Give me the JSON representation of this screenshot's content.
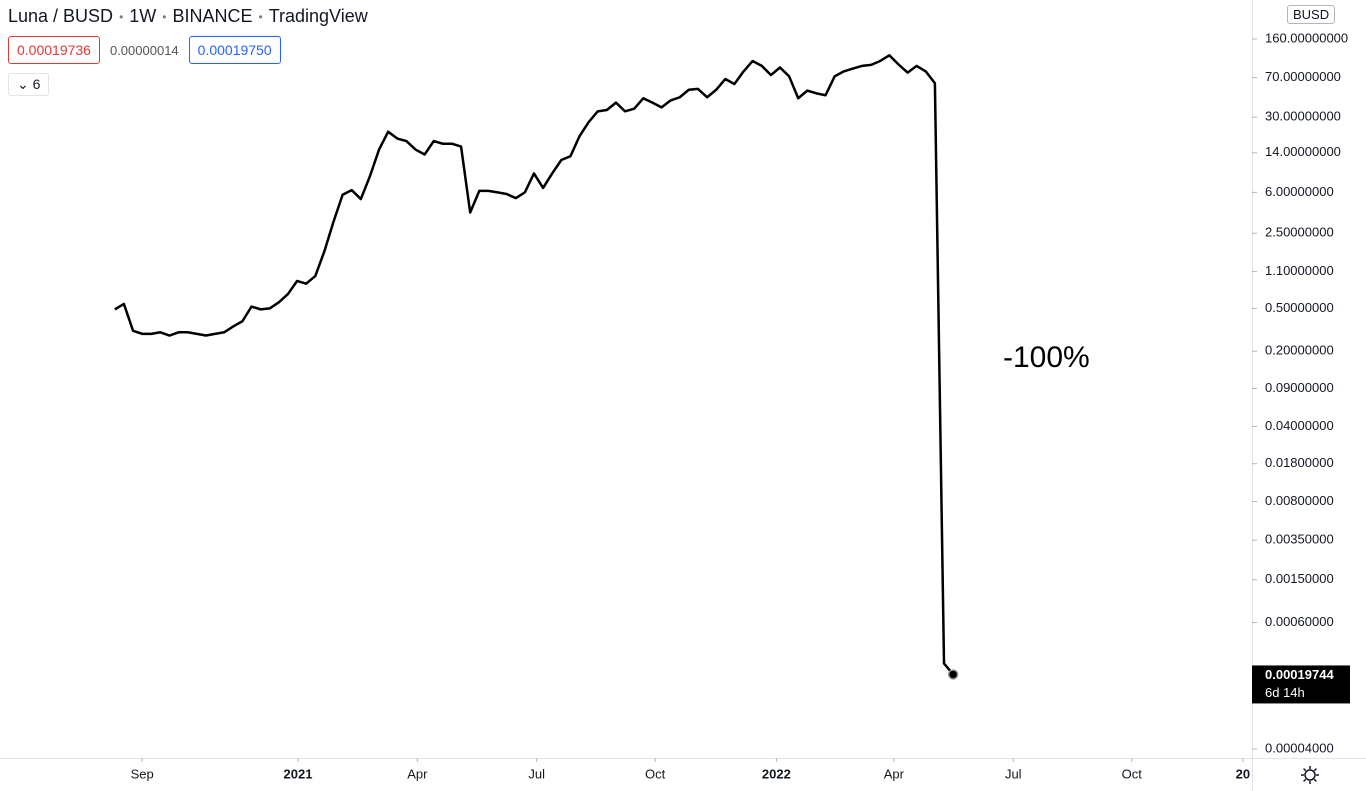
{
  "chart_data": {
    "type": "line",
    "title": "Luna / BUSD",
    "interval": "1W",
    "exchange": "BINANCE",
    "source": "TradingView",
    "ohlc": [
      "0.00019736",
      "0.00000014",
      "0.00019750"
    ],
    "indicator_count": "6",
    "currency": "BUSD",
    "annotation": "-100%",
    "countdown": "6d 14h",
    "log_scale": true,
    "grid": false,
    "color": "#000000",
    "x": [
      0,
      1,
      2,
      3,
      4,
      5,
      6,
      7,
      8,
      9,
      10,
      11,
      12,
      13,
      14,
      15,
      16,
      17,
      18,
      19,
      20,
      21,
      22,
      23,
      24,
      25,
      26,
      27,
      28,
      29,
      30,
      31,
      32,
      33,
      34,
      35,
      36,
      37,
      38,
      39,
      40,
      41,
      42,
      43,
      44,
      45,
      46,
      47,
      48,
      49,
      50,
      51,
      52,
      53,
      54,
      55,
      56,
      57,
      58,
      59,
      60,
      61,
      62,
      63,
      64,
      65,
      66,
      67,
      68,
      69,
      70,
      71,
      72,
      73,
      74,
      75,
      76,
      77,
      78,
      79,
      80,
      81,
      82,
      83,
      84,
      85,
      86,
      87,
      88,
      89,
      90,
      91,
      92
    ],
    "values": [
      0.49,
      0.55,
      0.31,
      0.29,
      0.29,
      0.3,
      0.28,
      0.3,
      0.3,
      0.29,
      0.28,
      0.29,
      0.3,
      0.34,
      0.38,
      0.52,
      0.49,
      0.5,
      0.57,
      0.68,
      0.9,
      0.85,
      1.0,
      1.7,
      3.2,
      5.7,
      6.3,
      5.2,
      8.5,
      15,
      22,
      19,
      18,
      15,
      13.5,
      18,
      17,
      17,
      16,
      3.9,
      6.2,
      6.2,
      6,
      5.8,
      5.3,
      6,
      9,
      6.6,
      9,
      12,
      13,
      20,
      27,
      34,
      35,
      41,
      34,
      36,
      45,
      41,
      37,
      43,
      46,
      54,
      55,
      46,
      54,
      68,
      61,
      80,
      100,
      90,
      74,
      87,
      72,
      45,
      53,
      50,
      48,
      72,
      80,
      85,
      90,
      92,
      100,
      113,
      93,
      78,
      90,
      80,
      62,
      0.00025,
      0.00019744
    ],
    "xlim": [
      -12.6,
      124.8
    ],
    "xticks": [
      {
        "value": 3.0,
        "label": "Sep"
      },
      {
        "value": 20.1,
        "label": "2021"
      },
      {
        "value": 33.2,
        "label": "Apr"
      },
      {
        "value": 46.3,
        "label": "Jul"
      },
      {
        "value": 59.3,
        "label": "Oct"
      },
      {
        "value": 72.6,
        "label": "2022"
      },
      {
        "value": 85.5,
        "label": "Apr"
      },
      {
        "value": 98.6,
        "label": "Jul"
      },
      {
        "value": 111.6,
        "label": "Oct"
      },
      {
        "value": 123.8,
        "label": "20"
      }
    ],
    "ylim": [
      3.3e-05,
      369
    ],
    "yticks": [
      {
        "value": 160,
        "label": "160.00000000"
      },
      {
        "value": 70,
        "label": "70.00000000"
      },
      {
        "value": 30,
        "label": "30.00000000"
      },
      {
        "value": 14,
        "label": "14.00000000"
      },
      {
        "value": 6,
        "label": "6.00000000"
      },
      {
        "value": 2.5,
        "label": "2.50000000"
      },
      {
        "value": 1.1,
        "label": "1.10000000"
      },
      {
        "value": 0.5,
        "label": "0.50000000"
      },
      {
        "value": 0.2,
        "label": "0.20000000"
      },
      {
        "value": 0.09,
        "label": "0.09000000"
      },
      {
        "value": 0.04,
        "label": "0.04000000"
      },
      {
        "value": 0.018,
        "label": "0.01800000"
      },
      {
        "value": 0.008,
        "label": "0.00800000"
      },
      {
        "value": 0.0035,
        "label": "0.00350000"
      },
      {
        "value": 0.0015,
        "label": "0.00150000"
      },
      {
        "value": 0.0006,
        "label": "0.00060000"
      },
      {
        "value": 4e-05,
        "label": "0.00004000"
      }
    ]
  }
}
